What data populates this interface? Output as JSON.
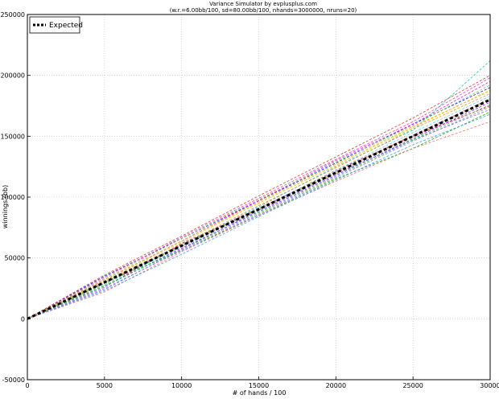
{
  "chart_data": {
    "type": "line",
    "title": "Variance Simulator by evplusplus.com",
    "subtitle": "(w.r.=6.00bb/100, sd=80.00bb/100, nhands=3000000, nruns=20)",
    "xlabel": "# of hands / 100",
    "ylabel": "winnings (bb)",
    "xlim": [
      0,
      30000
    ],
    "ylim": [
      -50000,
      250000
    ],
    "xticks": [
      0,
      5000,
      10000,
      15000,
      20000,
      25000,
      30000
    ],
    "yticks": [
      -50000,
      0,
      50000,
      100000,
      150000,
      200000,
      250000
    ],
    "grid": true,
    "legend_position": "top-left",
    "expected": {
      "name": "Expected",
      "color": "#000000",
      "x": [
        0,
        30000
      ],
      "y": [
        0,
        180000
      ]
    },
    "series": [
      {
        "color": "#ff0000",
        "x": [
          0,
          5000,
          10000,
          15000,
          20000,
          25000,
          30000
        ],
        "y": [
          0,
          26000,
          62000,
          90000,
          122000,
          150000,
          175000
        ]
      },
      {
        "color": "#0000ff",
        "x": [
          0,
          5000,
          10000,
          15000,
          20000,
          25000,
          30000
        ],
        "y": [
          0,
          35000,
          66000,
          97000,
          128000,
          160000,
          190000
        ]
      },
      {
        "color": "#00aa00",
        "x": [
          0,
          5000,
          10000,
          15000,
          20000,
          25000,
          30000
        ],
        "y": [
          0,
          30000,
          56000,
          85000,
          115000,
          140000,
          170000
        ]
      },
      {
        "color": "#ff00ff",
        "x": [
          0,
          5000,
          10000,
          15000,
          20000,
          25000,
          30000
        ],
        "y": [
          0,
          32000,
          64000,
          97000,
          130000,
          160000,
          195000
        ]
      },
      {
        "color": "#00cccc",
        "x": [
          0,
          5000,
          10000,
          15000,
          20000,
          25000,
          30000
        ],
        "y": [
          0,
          28000,
          60000,
          92000,
          125000,
          155000,
          212000
        ]
      },
      {
        "color": "#cccc00",
        "x": [
          0,
          5000,
          10000,
          15000,
          20000,
          25000,
          30000
        ],
        "y": [
          0,
          31000,
          63000,
          95000,
          126000,
          157000,
          188000
        ]
      },
      {
        "color": "#ff8800",
        "x": [
          0,
          5000,
          10000,
          15000,
          20000,
          25000,
          30000
        ],
        "y": [
          0,
          29000,
          61000,
          93000,
          124000,
          156000,
          185000
        ]
      },
      {
        "color": "#8800ff",
        "x": [
          0,
          5000,
          10000,
          15000,
          20000,
          25000,
          30000
        ],
        "y": [
          0,
          27000,
          58000,
          88000,
          118000,
          148000,
          178000
        ]
      },
      {
        "color": "#ff6666",
        "x": [
          0,
          5000,
          10000,
          15000,
          20000,
          25000,
          30000
        ],
        "y": [
          0,
          22000,
          55000,
          85000,
          113000,
          140000,
          162000
        ]
      },
      {
        "color": "#6666ff",
        "x": [
          0,
          5000,
          10000,
          15000,
          20000,
          25000,
          30000
        ],
        "y": [
          0,
          24000,
          57000,
          89000,
          119000,
          147000,
          172000
        ]
      },
      {
        "color": "#66cc66",
        "x": [
          0,
          5000,
          10000,
          15000,
          20000,
          25000,
          30000
        ],
        "y": [
          0,
          33000,
          66000,
          98000,
          129000,
          159000,
          192000
        ]
      },
      {
        "color": "#cc66cc",
        "x": [
          0,
          5000,
          10000,
          15000,
          20000,
          25000,
          30000
        ],
        "y": [
          0,
          30000,
          61000,
          91000,
          121000,
          151000,
          181000
        ]
      },
      {
        "color": "#66cccc",
        "x": [
          0,
          5000,
          10000,
          15000,
          20000,
          25000,
          30000
        ],
        "y": [
          0,
          26000,
          59000,
          90000,
          122000,
          153000,
          183000
        ]
      },
      {
        "color": "#999900",
        "x": [
          0,
          5000,
          10000,
          15000,
          20000,
          25000,
          30000
        ],
        "y": [
          0,
          29000,
          60000,
          90000,
          120000,
          150000,
          180000
        ]
      },
      {
        "color": "#ff3399",
        "x": [
          0,
          5000,
          10000,
          15000,
          20000,
          25000,
          30000
        ],
        "y": [
          0,
          34000,
          67000,
          99000,
          131000,
          162000,
          198000
        ]
      },
      {
        "color": "#3399ff",
        "x": [
          0,
          5000,
          10000,
          15000,
          20000,
          25000,
          30000
        ],
        "y": [
          0,
          23000,
          53000,
          84000,
          114000,
          143000,
          168000
        ]
      },
      {
        "color": "#33cc33",
        "x": [
          0,
          5000,
          10000,
          15000,
          20000,
          25000,
          30000
        ],
        "y": [
          0,
          27000,
          57000,
          87000,
          117000,
          147000,
          176000
        ]
      },
      {
        "color": "#cc3333",
        "x": [
          0,
          5000,
          10000,
          15000,
          20000,
          25000,
          30000
        ],
        "y": [
          0,
          36000,
          68000,
          101000,
          133000,
          165000,
          200000
        ]
      },
      {
        "color": "#9966ff",
        "x": [
          0,
          5000,
          10000,
          15000,
          20000,
          25000,
          30000
        ],
        "y": [
          0,
          25000,
          56000,
          86000,
          116000,
          146000,
          174000
        ]
      },
      {
        "color": "#ffaa00",
        "x": [
          0,
          5000,
          10000,
          15000,
          20000,
          25000,
          30000
        ],
        "y": [
          0,
          32000,
          64000,
          96000,
          127000,
          158000,
          187000
        ]
      }
    ]
  }
}
